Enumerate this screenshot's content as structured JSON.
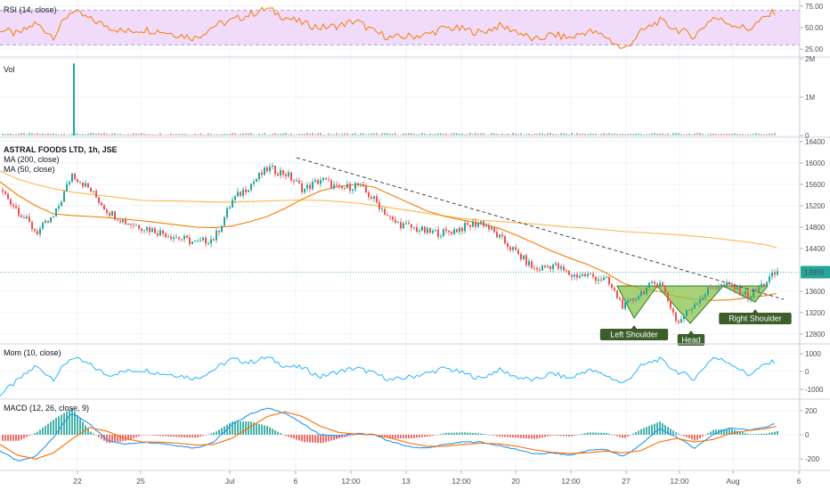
{
  "chart_data": [
    {
      "type": "line",
      "panel": "rsi",
      "title": "RSI (14, close)",
      "yticks": [
        "75.00",
        "50.00",
        "25.00"
      ],
      "band": [
        30,
        70
      ],
      "ylim": [
        18,
        82
      ],
      "x": [
        0,
        20,
        40,
        60,
        80,
        100,
        120,
        140,
        160,
        180,
        200,
        220,
        240,
        260,
        280,
        300,
        320,
        340,
        360,
        380,
        400,
        420,
        440,
        460,
        480,
        500,
        520,
        540,
        560,
        580,
        600,
        620,
        640,
        660,
        680,
        700,
        720,
        740,
        760,
        780,
        800,
        820,
        840,
        860,
        872
      ],
      "values": [
        48,
        42,
        55,
        40,
        70,
        60,
        52,
        45,
        48,
        46,
        42,
        38,
        52,
        58,
        65,
        72,
        62,
        55,
        50,
        52,
        58,
        45,
        38,
        40,
        42,
        50,
        48,
        44,
        52,
        46,
        35,
        42,
        38,
        46,
        40,
        24,
        45,
        58,
        48,
        40,
        62,
        55,
        48,
        62,
        70
      ],
      "colors": {
        "line": "#f57c00",
        "band_fill": "#f0dcfa",
        "band_edge": "#b49bd8"
      }
    },
    {
      "type": "bar",
      "panel": "volume",
      "title": "Vol",
      "yticks": [
        "2M",
        "1M",
        "0"
      ],
      "ylim": [
        0,
        2000000
      ],
      "spike": {
        "x": 83,
        "value": 1880000
      },
      "baseline": 40000,
      "colors": {
        "up": "#26a69a",
        "down": "#ef5350",
        "spike": "#26a69a"
      }
    },
    {
      "type": "line",
      "panel": "price",
      "title": "ASTRAL FOODS LTD, 1h, JSE",
      "legend": [
        "MA (200, close)",
        "MA (50, close)"
      ],
      "yticks": [
        "16400",
        "16000",
        "15600",
        "15200",
        "14800",
        "14400",
        "13600",
        "13200",
        "12800"
      ],
      "ylim": [
        12650,
        16450
      ],
      "last_price": "13959",
      "x": [
        0,
        20,
        40,
        60,
        80,
        100,
        120,
        140,
        160,
        180,
        200,
        220,
        240,
        260,
        280,
        300,
        320,
        340,
        360,
        380,
        400,
        420,
        440,
        460,
        480,
        500,
        520,
        540,
        560,
        580,
        600,
        620,
        640,
        660,
        680,
        700,
        720,
        740,
        760,
        780,
        800,
        820,
        840,
        860,
        872
      ],
      "close": [
        15500,
        15100,
        14700,
        15000,
        15800,
        15500,
        15100,
        14900,
        14800,
        14700,
        14600,
        14500,
        14600,
        15300,
        15600,
        15900,
        15800,
        15500,
        15700,
        15500,
        15600,
        15300,
        14900,
        14800,
        14700,
        14700,
        14800,
        14900,
        14600,
        14300,
        14000,
        14100,
        13900,
        13900,
        13800,
        13300,
        13600,
        13800,
        13000,
        13400,
        13700,
        13700,
        13500,
        13800,
        13960
      ],
      "ma200": [
        15850,
        15700,
        15600,
        15520,
        15460,
        15420,
        15380,
        15340,
        15300,
        15290,
        15290,
        15280,
        15270,
        15270,
        15280,
        15290,
        15300,
        15310,
        15300,
        15280,
        15250,
        15210,
        15160,
        15110,
        15060,
        15010,
        14960,
        14930,
        14910,
        14880,
        14860,
        14830,
        14800,
        14780,
        14750,
        14720,
        14700,
        14680,
        14660,
        14630,
        14600,
        14560,
        14520,
        14470,
        14420
      ],
      "ma50": [
        15650,
        15400,
        15200,
        15050,
        15020,
        15000,
        14980,
        14950,
        14920,
        14880,
        14840,
        14800,
        14790,
        14820,
        14900,
        15000,
        15150,
        15330,
        15480,
        15560,
        15600,
        15550,
        15400,
        15250,
        15100,
        15000,
        14930,
        14870,
        14780,
        14650,
        14500,
        14350,
        14220,
        14100,
        13950,
        13750,
        13650,
        13600,
        13500,
        13450,
        13430,
        13440,
        13480,
        13520,
        13560
      ],
      "trendline": {
        "from": [
          333,
          16100
        ],
        "to": [
          880,
          13450
        ]
      },
      "pattern": [
        [
          693,
          13700
        ],
        [
          712,
          13100
        ],
        [
          738,
          13700
        ],
        [
          775,
          13000
        ],
        [
          812,
          13700
        ],
        [
          848,
          13400
        ],
        [
          862,
          13700
        ]
      ],
      "neckline": 13700,
      "annotations": [
        {
          "text": "Left Shoulder",
          "x": 712,
          "value": 13100
        },
        {
          "text": "Head",
          "x": 776,
          "value": 13000
        },
        {
          "text": "Right Shoulder",
          "x": 848,
          "value": 13400
        }
      ],
      "colors": {
        "up": "#26a69a",
        "down": "#ef5350",
        "ma200": "#ffb74d",
        "ma50": "#f57c00",
        "pattern_fill": "#8bc34a",
        "pattern_edge": "#2e7d32",
        "callout": "#3b5e2a",
        "price_tag": "#26a69a",
        "price_line": "#26a69a"
      }
    },
    {
      "type": "line",
      "panel": "momentum",
      "title": "Mom (10, close)",
      "yticks": [
        "1000",
        "0",
        "-1000"
      ],
      "ylim": [
        -1450,
        1450
      ],
      "x": [
        0,
        20,
        40,
        60,
        80,
        100,
        120,
        140,
        160,
        180,
        200,
        220,
        240,
        260,
        280,
        300,
        320,
        340,
        360,
        380,
        400,
        420,
        440,
        460,
        480,
        500,
        520,
        540,
        560,
        580,
        600,
        620,
        640,
        660,
        680,
        700,
        720,
        740,
        760,
        780,
        800,
        820,
        840,
        860,
        872
      ],
      "values": [
        -1300,
        -500,
        300,
        -400,
        800,
        400,
        -200,
        0,
        100,
        -100,
        -200,
        -400,
        100,
        700,
        500,
        800,
        300,
        200,
        -300,
        0,
        200,
        -100,
        -500,
        -300,
        -100,
        200,
        -100,
        -400,
        100,
        -300,
        -500,
        -100,
        -400,
        100,
        -200,
        -700,
        300,
        700,
        0,
        -400,
        800,
        500,
        -200,
        400,
        600
      ],
      "colors": {
        "line": "#29b6f6"
      }
    },
    {
      "type": "bar",
      "panel": "macd",
      "title": "MACD (12, 26, close, 9)",
      "yticks": [
        "200",
        "0",
        "-200"
      ],
      "ylim": [
        -280,
        280
      ],
      "x": [
        0,
        20,
        40,
        60,
        80,
        100,
        120,
        140,
        160,
        180,
        200,
        220,
        240,
        260,
        280,
        300,
        320,
        340,
        360,
        380,
        400,
        420,
        440,
        460,
        480,
        500,
        520,
        540,
        560,
        580,
        600,
        620,
        640,
        660,
        680,
        700,
        720,
        740,
        760,
        780,
        800,
        820,
        840,
        860,
        872
      ],
      "macd": [
        -130,
        -220,
        -180,
        -20,
        180,
        90,
        -40,
        -80,
        -60,
        -70,
        -90,
        -110,
        -60,
        80,
        170,
        220,
        180,
        90,
        0,
        -10,
        10,
        0,
        -60,
        -100,
        -110,
        -80,
        -60,
        -60,
        -90,
        -120,
        -160,
        -150,
        -170,
        -130,
        -120,
        -180,
        -80,
        50,
        -20,
        -110,
        0,
        60,
        40,
        60,
        100
      ],
      "signal": [
        -80,
        -170,
        -200,
        -150,
        -40,
        60,
        30,
        -30,
        -60,
        -60,
        -70,
        -85,
        -80,
        -30,
        60,
        150,
        190,
        150,
        70,
        20,
        5,
        0,
        -30,
        -70,
        -95,
        -95,
        -80,
        -70,
        -75,
        -95,
        -125,
        -145,
        -155,
        -150,
        -135,
        -150,
        -130,
        -60,
        -30,
        -60,
        -40,
        10,
        35,
        50,
        70
      ],
      "colors": {
        "macd": "#2196f3",
        "signal": "#ff6d00",
        "hist_up": "#26a69a",
        "hist_down": "#ef5350"
      }
    }
  ],
  "x_axis": {
    "labels": [
      {
        "text": "22",
        "x": 87
      },
      {
        "text": "25",
        "x": 158
      },
      {
        "text": "Jul",
        "x": 258
      },
      {
        "text": "6",
        "x": 332
      },
      {
        "text": "12:00",
        "x": 394
      },
      {
        "text": "13",
        "x": 456
      },
      {
        "text": "12:00",
        "x": 518
      },
      {
        "text": "20",
        "x": 579
      },
      {
        "text": "12:00",
        "x": 641
      },
      {
        "text": "27",
        "x": 703
      },
      {
        "text": "12:00",
        "x": 763
      },
      {
        "text": "Aug",
        "x": 823
      },
      {
        "text": "6",
        "x": 897
      }
    ]
  }
}
